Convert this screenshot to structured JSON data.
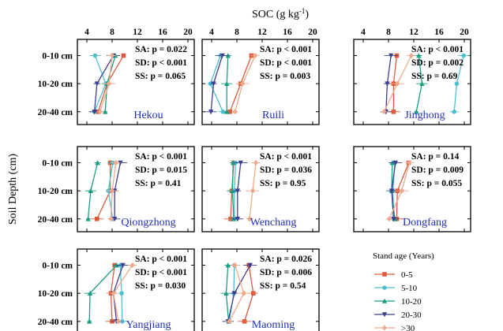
{
  "chart_data": {
    "type": "line",
    "xlabel": "SOC (g kg-1)",
    "xlabel_main": "SOC (g kg",
    "xlabel_sup": "-1",
    "xlabel_tail": ")",
    "ylabel": "Soil Depth (cm)",
    "x_ticks": [
      "4",
      "8",
      "12",
      "16",
      "20"
    ],
    "x_tick_values": [
      4,
      8,
      12,
      16,
      20
    ],
    "xlim": [
      2.5,
      21
    ],
    "depths": [
      "0-10 cm",
      "10-20 cm",
      "20-40 cm"
    ],
    "legend_title": "Stand age (Years)",
    "series_names": [
      "0-5",
      "5-10",
      "10-20",
      "20-30",
      ">30"
    ],
    "series_colors": [
      "#e05a3c",
      "#4dbfd1",
      "#1a9e83",
      "#3d3f8f",
      "#f0a98a"
    ],
    "series_markers": [
      "square",
      "circle",
      "triangle-up",
      "triangle-down",
      "diamond"
    ],
    "panels": [
      {
        "title": "Hekou",
        "stats": [
          "SA: p = 0.022",
          "SD: p < 0.001",
          "SS: p = 0.065"
        ],
        "series": [
          [
            9.8,
            7.2,
            5.8
          ],
          [
            5.3,
            7.0,
            5.2
          ],
          [
            8.5,
            7.2,
            6.9
          ],
          [
            8.2,
            5.6,
            5.2
          ],
          [
            8.0,
            7.5,
            6.1
          ]
        ]
      },
      {
        "title": "Ruili",
        "stats": [
          "SA: p < 0.001",
          "SD: p < 0.001",
          "SS: p = 0.003"
        ],
        "series": [
          [
            10.3,
            8.6,
            6.9
          ],
          [
            5.4,
            3.8,
            5.8
          ],
          [
            6.6,
            6.4,
            6.4
          ],
          [
            5.7,
            4.3,
            3.9
          ],
          [
            10.9,
            8.9,
            7.7
          ]
        ]
      },
      {
        "title": "Jinghong",
        "stats": [
          "SA: p < 0.001",
          "SD: p = 0.002",
          "SS: p = 0.69"
        ],
        "series": [
          [
            9.3,
            8.8,
            8.8
          ],
          [
            19.9,
            18.8,
            18.4
          ],
          [
            12.8,
            13.3,
            12.4
          ],
          [
            8.4,
            7.8,
            7.6
          ],
          [
            11.6,
            9.4,
            7.3
          ]
        ]
      },
      {
        "title": "Qiongzhong",
        "stats": [
          "SA: p < 0.001",
          "SD: p = 0.015",
          "SS: p = 0.41"
        ],
        "series": [
          [
            7.7,
            7.7,
            5.6
          ],
          [
            8.1,
            7.4,
            8.1
          ],
          [
            5.7,
            4.6,
            4.2
          ],
          [
            9.3,
            8.4,
            8.4
          ],
          [
            8.6,
            8.0,
            7.8
          ]
        ]
      },
      {
        "title": "Wenchang",
        "stats": [
          "SA: p < 0.001",
          "SD: p = 0.036",
          "SS: p = 0.95"
        ],
        "series": [
          [
            7.5,
            7.2,
            7.0
          ],
          [
            7.8,
            7.6,
            7.6
          ],
          [
            7.4,
            7.3,
            7.5
          ],
          [
            8.6,
            8.1,
            8.1
          ],
          [
            11.0,
            10.5,
            10.0
          ]
        ]
      },
      {
        "title": "Dongfang",
        "stats": [
          "SA: p = 0.14",
          "SD: p = 0.009",
          "SS: p = 0.055"
        ],
        "series": [
          [
            11.2,
            9.4,
            9.3
          ],
          [
            9.0,
            8.7,
            8.8
          ],
          [
            8.6,
            8.5,
            9.0
          ],
          [
            9.1,
            8.5,
            8.8
          ],
          [
            11.3,
            10.1,
            8.1
          ]
        ]
      },
      {
        "title": "Yangjiang",
        "stats": [
          "SA: p < 0.001",
          "SD: p < 0.001",
          "SS: p = 0.030"
        ],
        "series": [
          [
            8.4,
            7.8,
            8.0
          ],
          [
            9.3,
            9.5,
            9.6
          ],
          [
            8.7,
            4.5,
            4.4
          ],
          [
            9.7,
            8.2,
            8.7
          ],
          [
            11.2,
            8.2,
            9.0
          ]
        ]
      },
      {
        "title": "Maoming",
        "stats": [
          "SA: p = 0.026",
          "SD: p = 0.006",
          "SS: p = 0.54"
        ],
        "series": [
          [
            9.9,
            10.6,
            9.2
          ],
          [
            7.6,
            7.5,
            6.8
          ],
          [
            6.6,
            6.3,
            6.7
          ],
          [
            10.1,
            7.6,
            6.6
          ],
          [
            7.7,
            9.1,
            6.8
          ]
        ]
      }
    ]
  }
}
